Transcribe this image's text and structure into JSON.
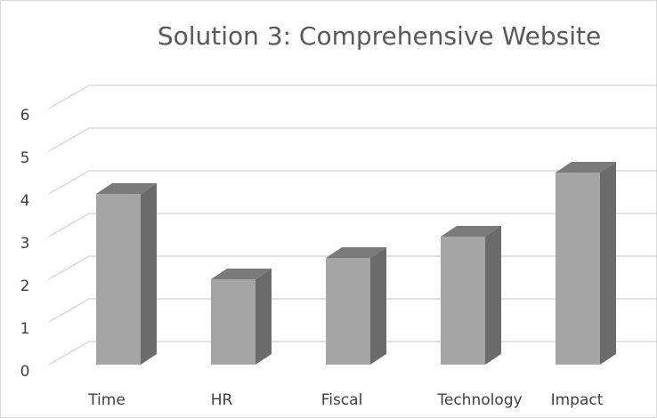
{
  "chart_data": {
    "type": "bar",
    "title": "Solution 3: Comprehensive Website",
    "categories": [
      "Time",
      "HR",
      "Fiscal",
      "Technology",
      "Impact"
    ],
    "values": [
      4,
      2,
      2.5,
      3,
      4.5
    ],
    "color": "#a5a5a5",
    "ylim": [
      0,
      6
    ],
    "yticks": [
      0,
      1,
      2,
      3,
      4,
      5,
      6
    ],
    "grid": true
  }
}
